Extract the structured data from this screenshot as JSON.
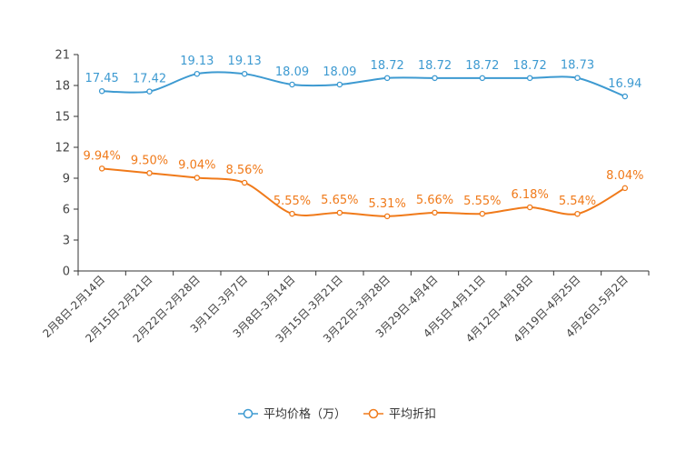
{
  "chart_data": {
    "type": "line",
    "title": "",
    "xlabel": "",
    "ylabel": "",
    "ylim": [
      0,
      21
    ],
    "yticks": [
      0,
      3,
      6,
      9,
      12,
      15,
      18,
      21
    ],
    "grid": false,
    "legend_position": "bottom",
    "categories": [
      "2月8日-2月14日",
      "2月15日-2月21日",
      "2月22日-2月28日",
      "3月1日-3月7日",
      "3月8日-3月14日",
      "3月15日-3月21日",
      "3月22日-3月28日",
      "3月29日-4月4日",
      "4月5日-4月11日",
      "4月12日-4月18日",
      "4月19日-4月25日",
      "4月26日-5月2日"
    ],
    "series": [
      {
        "name": "平均价格（万）",
        "color": "#3d9ad1",
        "values": [
          17.45,
          17.42,
          19.13,
          19.13,
          18.09,
          18.09,
          18.72,
          18.72,
          18.72,
          18.72,
          18.73,
          16.94
        ],
        "labels": [
          "17.45",
          "17.42",
          "19.13",
          "19.13",
          "18.09",
          "18.09",
          "18.72",
          "18.72",
          "18.72",
          "18.72",
          "18.73",
          "16.94"
        ]
      },
      {
        "name": "平均折扣",
        "color": "#f07a1a",
        "values": [
          9.94,
          9.5,
          9.04,
          8.56,
          5.55,
          5.65,
          5.31,
          5.66,
          5.55,
          6.18,
          5.54,
          8.04
        ],
        "labels": [
          "9.94%",
          "9.50%",
          "9.04%",
          "8.56%",
          "5.55%",
          "5.65%",
          "5.31%",
          "5.66%",
          "5.55%",
          "6.18%",
          "5.54%",
          "8.04%"
        ]
      }
    ]
  }
}
